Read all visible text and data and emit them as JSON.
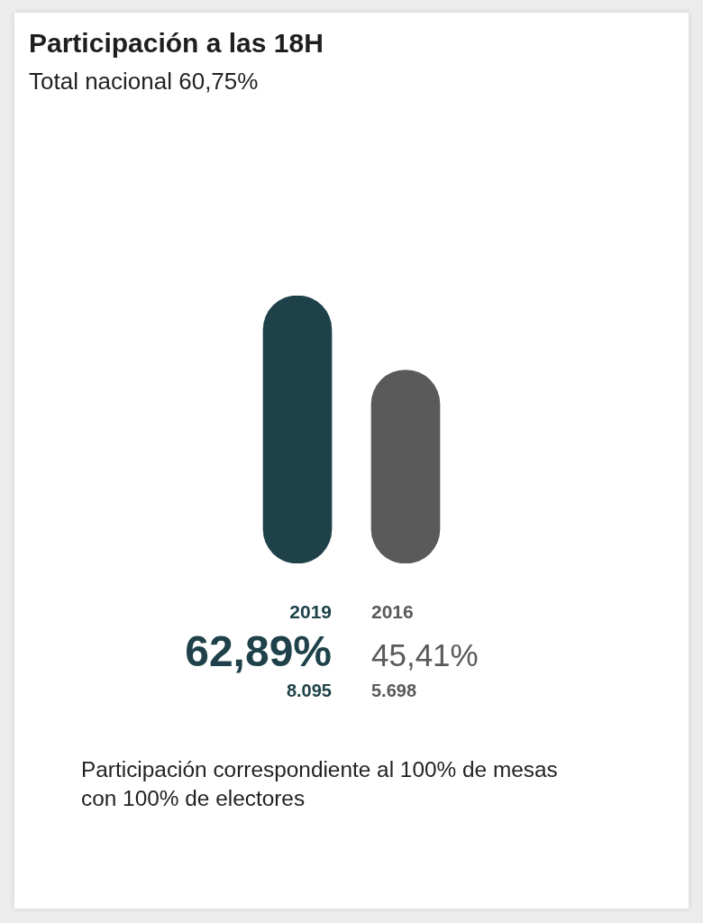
{
  "chart_data": {
    "type": "bar",
    "title": "Participación a las 18H",
    "subtitle": "Total nacional 60,75%",
    "categories": [
      "2019",
      "2016"
    ],
    "values": [
      62.89,
      45.41
    ],
    "colors": [
      "#1f424a",
      "#5a5a5a"
    ],
    "value_labels": [
      "62,89%",
      "45,41%"
    ],
    "tick_labels": "x",
    "annotations": [
      "8.095",
      "5.698",
      "Participación correspondiente al 100% de mesas con 100% de electores"
    ]
  }
}
